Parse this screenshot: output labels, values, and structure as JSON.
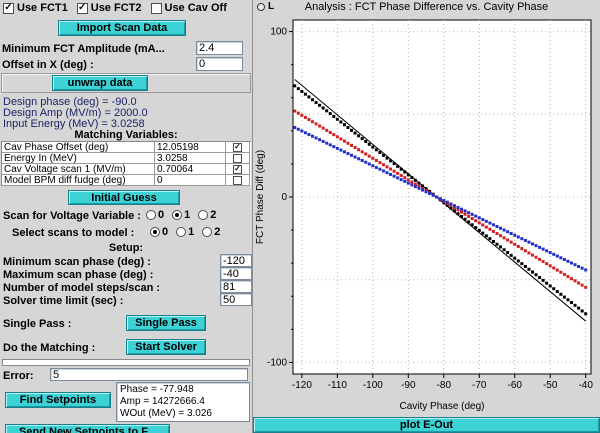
{
  "left_panel": {
    "checkboxes": [
      {
        "label": "Use FCT1",
        "checked": true
      },
      {
        "label": "Use FCT2",
        "checked": true
      },
      {
        "label": "Use Cav Off",
        "checked": false
      }
    ],
    "import_button": "Import Scan Data",
    "min_fct": {
      "label": "Minimum FCT Amplitude (mA...",
      "value": "2.4"
    },
    "offset_x": {
      "label": "Offset in X (deg) :",
      "value": "0"
    },
    "unwrap_button": "unwrap data",
    "info_lines": [
      "Design phase (deg) = -90.0",
      "Design Amp (MV/m) = 2000.0",
      "Input Energy (MeV) = 3.0258"
    ],
    "matching_header": "Matching Variables:",
    "matching_rows": [
      {
        "name": "Cav Phase Offset (deg)",
        "value": "12.05198",
        "checked": true
      },
      {
        "name": "Energy In (MeV)",
        "value": "3.0258",
        "checked": false
      },
      {
        "name": "Cav Voltage scan 1 (MV/m)",
        "value": "0.70064",
        "checked": true
      },
      {
        "name": "Model BPM diff fudge (deg)",
        "value": "0",
        "checked": false
      }
    ],
    "initial_guess_button": "Initial Guess",
    "scan_voltage": {
      "label": "Scan for Voltage Variable :",
      "options": [
        {
          "label": "0",
          "selected": false
        },
        {
          "label": "1",
          "selected": true
        },
        {
          "label": "2",
          "selected": false
        }
      ]
    },
    "select_scans": {
      "label": "Select scans to model :",
      "options": [
        {
          "label": "0",
          "selected": true
        },
        {
          "label": "1",
          "selected": false
        },
        {
          "label": "2",
          "selected": false
        }
      ]
    },
    "setup_header": "Setup:",
    "setup_rows": [
      {
        "label": "Minimum scan phase (deg) :",
        "value": "-120"
      },
      {
        "label": "Maximum scan phase (deg) :",
        "value": "-40"
      },
      {
        "label": "Number of model steps/scan :",
        "value": "81"
      },
      {
        "label": "Solver time limit (sec) :",
        "value": "50"
      }
    ],
    "single_pass": {
      "label": "Single Pass :",
      "button": "Single Pass"
    },
    "do_matching": {
      "label": "Do the Matching :",
      "button": "Start Solver"
    },
    "error": {
      "label": "Error:",
      "value": "5"
    },
    "results_lines": [
      "Phase = -77.948",
      "Amp = 14272666.4",
      "WOut (MeV) = 3.026"
    ],
    "find_setpoints_button": "Find Setpoints",
    "send_setpoints_button": "Send New Setpoints to F..."
  },
  "right_panel": {
    "legend_button": "L",
    "plot_button": "plot E-Out"
  },
  "chart_data": {
    "type": "scatter",
    "title": "Analysis : FCT Phase Difference vs. Cavity Phase",
    "xlabel": "Cavity Phase (deg)",
    "ylabel": "FCT Phase Diff (deg)",
    "xlim": [
      -122.5,
      -38.5
    ],
    "ylim": [
      -107,
      107
    ],
    "x_ticks": [
      -120,
      -110,
      -100,
      -90,
      -80,
      -70,
      -60,
      -50,
      -40
    ],
    "y_ticks": [
      100,
      0,
      -100
    ],
    "y_minor_ticks": [
      80,
      60,
      40,
      20,
      -20,
      -40,
      -60,
      -80
    ],
    "y_gridlines": [
      100,
      50,
      0,
      -50,
      -100
    ],
    "grid": true,
    "legend_position": "none",
    "marker": "square",
    "series": [
      {
        "name": "black",
        "color": "#000000",
        "x_start": -122,
        "x_step": 2,
        "y": [
          67.2,
          63.8,
          60.5,
          57.1,
          53.8,
          50.4,
          47,
          43.7,
          40.3,
          37,
          33.6,
          30.2,
          26.9,
          23.5,
          20.2,
          16.8,
          13.4,
          10.1,
          6.7,
          3.4,
          0,
          -3.4,
          -6.7,
          -10.1,
          -13.4,
          -16.8,
          -20.2,
          -23.5,
          -26.9,
          -30.2,
          -33.6,
          -37,
          -40.3,
          -43.7,
          -47,
          -50.4,
          -53.8,
          -57.1,
          -60.5,
          -63.8,
          -67.2,
          -70.6
        ]
      },
      {
        "name": "red",
        "color": "#d42020",
        "x_start": -122,
        "x_step": 2,
        "y": [
          52,
          49.4,
          46.8,
          44.2,
          41.6,
          39,
          36.4,
          33.8,
          31.2,
          28.6,
          26,
          23.4,
          20.8,
          18.2,
          15.6,
          13,
          10.4,
          7.8,
          5.2,
          2.6,
          0,
          -2.6,
          -5.2,
          -7.8,
          -10.4,
          -13,
          -15.6,
          -18.2,
          -20.8,
          -23.4,
          -26,
          -28.6,
          -31.2,
          -33.8,
          -36.4,
          -39,
          -41.6,
          -44.2,
          -46.8,
          -49.4,
          -52,
          -54.6
        ]
      },
      {
        "name": "blue",
        "color": "#2030c8",
        "x_start": -122,
        "x_step": 2,
        "y": [
          42,
          39.9,
          37.8,
          35.7,
          33.6,
          31.5,
          29.4,
          27.3,
          25.2,
          23.1,
          21,
          18.9,
          16.8,
          14.7,
          12.6,
          10.5,
          8.4,
          6.3,
          4.2,
          2.1,
          0,
          -2.1,
          -4.2,
          -6.3,
          -8.4,
          -10.5,
          -12.6,
          -14.7,
          -16.8,
          -18.9,
          -21,
          -23.1,
          -25.2,
          -27.3,
          -29.4,
          -31.5,
          -33.6,
          -35.7,
          -37.8,
          -39.9,
          -42,
          -44.1
        ]
      }
    ],
    "fit_line": {
      "color": "#000000",
      "points": [
        [
          -122,
          71
        ],
        [
          -40,
          -75
        ]
      ]
    }
  }
}
